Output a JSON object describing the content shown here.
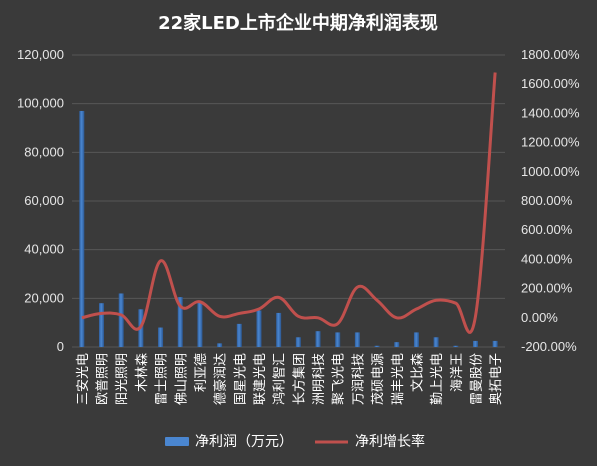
{
  "chart_data": {
    "type": "bar",
    "title": "22家LED上市企业中期净利润表现",
    "categories": [
      "三安光电",
      "欧普照明",
      "阳光照明",
      "木林森",
      "雷士照明",
      "佛山照明",
      "利亚德",
      "德豪润达",
      "国星光电",
      "联建光电",
      "鸿利智汇",
      "长方集团",
      "洲明科技",
      "聚飞光电",
      "万润科技",
      "茂硕电源",
      "瑞丰光电",
      "文比森",
      "勤上光电",
      "海洋王",
      "雷曼股份",
      "奥拓电子"
    ],
    "y_left": {
      "ticks": [
        "0",
        "20,000",
        "40,000",
        "60,000",
        "80,000",
        "100,000",
        "120,000"
      ],
      "ylim": [
        0,
        120000
      ]
    },
    "y_right": {
      "ticks": [
        "-200.00%",
        "0.00%",
        "200.00%",
        "400.00%",
        "600.00%",
        "800.00%",
        "1000.00%",
        "1200.00%",
        "1400.00%",
        "1600.00%",
        "1800.00%"
      ],
      "ylim": [
        -200,
        1800
      ]
    },
    "series": [
      {
        "name": "净利润（万元）",
        "type": "bar",
        "axis": "left",
        "color": "#4a86d0",
        "values": [
          97000,
          18000,
          22000,
          15500,
          8000,
          20500,
          18500,
          1500,
          9500,
          15000,
          14000,
          4000,
          6500,
          6000,
          6000,
          500,
          2000,
          6000,
          4000,
          500,
          2500,
          2500
        ]
      },
      {
        "name": "净利增长率",
        "type": "line",
        "axis": "right",
        "color": "#c0504d",
        "values": [
          0,
          30,
          20,
          -60,
          390,
          80,
          110,
          10,
          30,
          60,
          140,
          10,
          0,
          -40,
          210,
          120,
          0,
          60,
          120,
          100,
          10,
          1680
        ]
      }
    ],
    "legend_position": "bottom",
    "grid": true
  }
}
